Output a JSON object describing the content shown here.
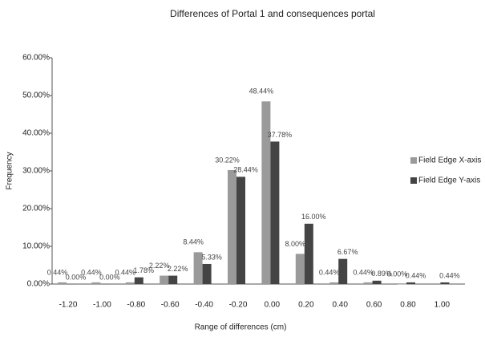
{
  "chart_data": {
    "type": "bar",
    "title": "Differences of Portal 1 and consequences portal",
    "x_label": "Range of differences (cm)",
    "y_label": "Frequency",
    "categories": [
      "-1.20",
      "-1.00",
      "-0.80",
      "-0.60",
      "-0.40",
      "-0.20",
      "0.00",
      "0.20",
      "0.40",
      "0.60",
      "0.80",
      "1.00"
    ],
    "series": [
      {
        "name": "Field Edge X-axis",
        "color": "#9a9a9a",
        "values": [
          0.44,
          0.44,
          0.44,
          2.22,
          8.44,
          30.22,
          48.44,
          8.0,
          0.44,
          0.44,
          0.0,
          null
        ],
        "value_labels": [
          "0.44%",
          "0.44%",
          "0.44%",
          "2.22%",
          "8.44%",
          "30.22%",
          "48.44%",
          "8.00%",
          "0.44%",
          "0.44%",
          "0.00%",
          null
        ]
      },
      {
        "name": "Field Edge Y-axis",
        "color": "#444444",
        "values": [
          0.0,
          0.0,
          1.78,
          2.22,
          5.33,
          28.44,
          37.78,
          16.0,
          6.67,
          0.89,
          0.44,
          0.44
        ],
        "value_labels": [
          "0.00%",
          "0.00%",
          "1.78%",
          "2.22%",
          "5.33%",
          "28.44%",
          "37.78%",
          "16.00%",
          "6.67%",
          "0.89%",
          "0.44%",
          "0.44%"
        ]
      }
    ],
    "ylim": [
      0,
      60
    ],
    "yticks": [
      {
        "value": 0,
        "label": "0.00%"
      },
      {
        "value": 10,
        "label": "10.00%"
      },
      {
        "value": 20,
        "label": "20.00%"
      },
      {
        "value": 30,
        "label": "30.00%"
      },
      {
        "value": 40,
        "label": "40.00%"
      },
      {
        "value": 50,
        "label": "50.00%"
      },
      {
        "value": 60,
        "label": "60.00%"
      }
    ],
    "legend": "right"
  }
}
